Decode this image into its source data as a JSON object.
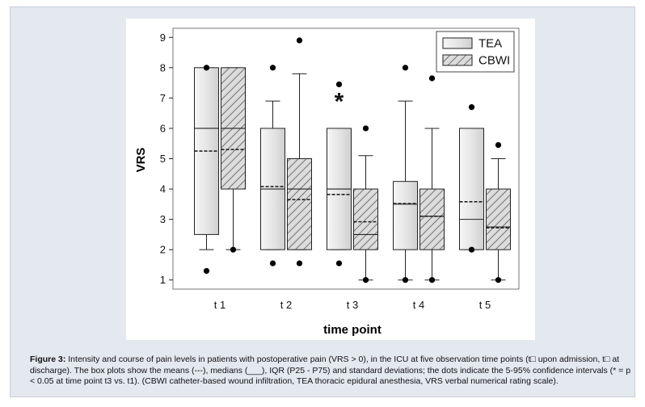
{
  "chart_data": {
    "type": "boxplot",
    "xlabel": "time point",
    "ylabel": "VRS",
    "ylim": [
      0.7,
      9.3
    ],
    "yticks": [
      1,
      2,
      3,
      4,
      5,
      6,
      7,
      8,
      9
    ],
    "categories": [
      "t 1",
      "t 2",
      "t 3",
      "t 4",
      "t 5"
    ],
    "legend": {
      "position": "top-right",
      "entries": [
        "TEA",
        "CBWI"
      ]
    },
    "annotation": {
      "text": "*",
      "category": "t 3",
      "series": "TEA",
      "y": 7.0
    },
    "series": [
      {
        "name": "TEA",
        "pattern": "plain",
        "boxes": [
          {
            "q1": 2.5,
            "median": 6.0,
            "q3": 8.0,
            "mean": 5.25,
            "whisker_low": 2.0,
            "whisker_high": 8.0,
            "outliers": [
              8.0,
              1.3
            ]
          },
          {
            "q1": 2.0,
            "median": 4.0,
            "q3": 6.0,
            "mean": 4.08,
            "whisker_low": 2.0,
            "whisker_high": 6.9,
            "outliers": [
              8.0,
              1.55
            ]
          },
          {
            "q1": 2.0,
            "median": 4.0,
            "q3": 6.0,
            "mean": 3.82,
            "whisker_low": 2.0,
            "whisker_high": 6.0,
            "outliers": [
              7.45,
              1.55
            ]
          },
          {
            "q1": 2.0,
            "median": 3.5,
            "q3": 4.25,
            "mean": 3.52,
            "whisker_low": 1.0,
            "whisker_high": 6.9,
            "outliers": [
              8.0,
              1.0
            ]
          },
          {
            "q1": 2.0,
            "median": 3.0,
            "q3": 6.0,
            "mean": 3.58,
            "whisker_low": 2.0,
            "whisker_high": 6.0,
            "outliers": [
              6.7,
              2.0
            ]
          }
        ]
      },
      {
        "name": "CBWI",
        "pattern": "hatched",
        "boxes": [
          {
            "q1": 4.0,
            "median": 6.0,
            "q3": 8.0,
            "mean": 5.3,
            "whisker_low": 2.0,
            "whisker_high": 8.0,
            "outliers": [
              2.0
            ]
          },
          {
            "q1": 2.0,
            "median": 4.0,
            "q3": 5.0,
            "mean": 3.65,
            "whisker_low": 2.0,
            "whisker_high": 7.8,
            "outliers": [
              8.9,
              1.55
            ]
          },
          {
            "q1": 2.0,
            "median": 2.5,
            "q3": 4.0,
            "mean": 2.92,
            "whisker_low": 1.0,
            "whisker_high": 5.1,
            "outliers": [
              6.0,
              1.0
            ]
          },
          {
            "q1": 2.0,
            "median": 3.1,
            "q3": 4.0,
            "mean": 3.1,
            "whisker_low": 1.0,
            "whisker_high": 6.0,
            "outliers": [
              7.65,
              1.0
            ]
          },
          {
            "q1": 2.0,
            "median": 2.75,
            "q3": 4.0,
            "mean": 2.72,
            "whisker_low": 1.0,
            "whisker_high": 5.0,
            "outliers": [
              5.45,
              1.0
            ]
          }
        ]
      }
    ]
  },
  "caption": {
    "label": "Figure 3:",
    "text": "Intensity and course of pain levels in patients with postoperative pain (VRS > 0), in the ICU at five observation time points (t□ upon admission, t□ at discharge). The box plots show the means (---), medians (___), IQR (P25 - P75) and standard deviations; the dots indicate the 5-95% confidence intervals (* = p < 0.05 at time point t3 vs. t1). (CBWI catheter-based wound infiltration, TEA thoracic epidural anesthesia, VRS verbal numerical rating scale)."
  },
  "colors": {
    "panel_background": "#e4e8ef",
    "plot_background": "#ffffff",
    "tea_fill": "#e6e6e6",
    "cbwi_fill": "#dcdcdc",
    "line": "#222222"
  }
}
